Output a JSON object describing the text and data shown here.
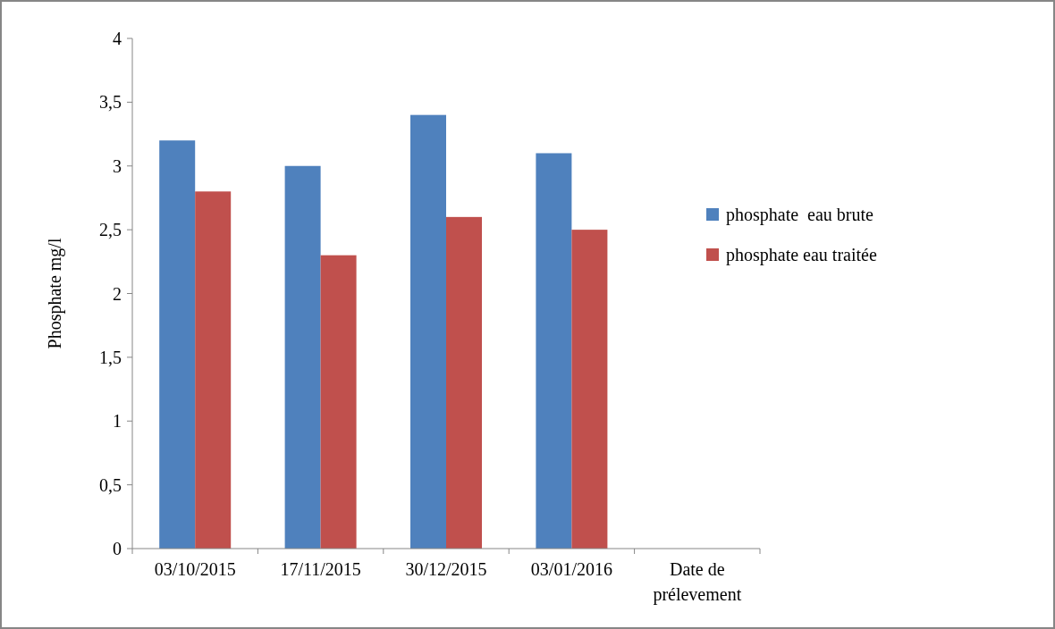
{
  "chart_data": {
    "type": "bar",
    "ylabel": "Phosphate mg/l",
    "categories": [
      "03/10/2015",
      "17/11/2015",
      "30/12/2015",
      "03/01/2016",
      "Date de prélevement"
    ],
    "series": [
      {
        "name": "phosphate  eau brute",
        "color": "#4f81bd",
        "values": [
          3.2,
          3.0,
          3.4,
          3.1,
          null
        ]
      },
      {
        "name": "phosphate eau traitée",
        "color": "#c0504d",
        "values": [
          2.8,
          2.3,
          2.6,
          2.5,
          null
        ]
      }
    ],
    "ylim": [
      0,
      4
    ],
    "yticks": [
      0,
      {
        "value": 0.5,
        "label": "0,5"
      },
      1,
      {
        "value": 1.5,
        "label": "1,5"
      },
      2,
      {
        "value": 2.5,
        "label": "2,5"
      },
      3,
      {
        "value": 3.5,
        "label": "3,5"
      },
      4
    ],
    "grid": false,
    "legend": "right"
  }
}
